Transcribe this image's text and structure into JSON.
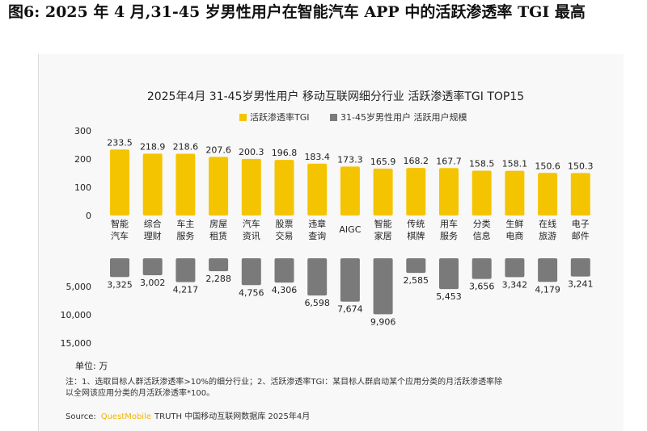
{
  "figure_title": "图6:  2025 年 4 月,31-45 岁男性用户在智能汽车 APP 中的活跃渗透率 TGI 最高",
  "colors": {
    "tgi_bar": "#f5c400",
    "scale_bar": "#7a7a7a",
    "source_brand": "#f5b400"
  },
  "chart_data": {
    "type": "bar",
    "title": "2025年4月 31-45岁男性用户 移动互联网细分行业 活跃渗透率TGI TOP15",
    "categories": [
      [
        "智能",
        "汽车"
      ],
      [
        "综合",
        "理财"
      ],
      [
        "车主",
        "服务"
      ],
      [
        "房屋",
        "租赁"
      ],
      [
        "汽车",
        "资讯"
      ],
      [
        "股票",
        "交易"
      ],
      [
        "违章",
        "查询"
      ],
      [
        "AIGC"
      ],
      [
        "智能",
        "家居"
      ],
      [
        "传统",
        "棋牌"
      ],
      [
        "用车",
        "服务"
      ],
      [
        "分类",
        "信息"
      ],
      [
        "生鲜",
        "电商"
      ],
      [
        "在线",
        "旅游"
      ],
      [
        "电子",
        "邮件"
      ]
    ],
    "series": [
      {
        "name": "活跃渗透率TGI",
        "values": [
          233.5,
          218.9,
          218.6,
          207.6,
          200.3,
          196.8,
          183.4,
          173.3,
          165.9,
          168.2,
          167.7,
          158.5,
          158.1,
          150.6,
          150.3
        ],
        "labels": [
          "233.5",
          "218.9",
          "218.6",
          "207.6",
          "200.3",
          "196.8",
          "183.4",
          "173.3",
          "165.9",
          "168.2",
          "167.7",
          "158.5",
          "158.1",
          "150.6",
          "150.3"
        ]
      },
      {
        "name": "31-45岁男性用户 活跃用户规模",
        "values": [
          3325,
          3002,
          4217,
          2288,
          4756,
          4306,
          6598,
          7674,
          9906,
          2585,
          5453,
          3656,
          3342,
          4179,
          3241
        ],
        "labels": [
          "3,325",
          "3,002",
          "4,217",
          "2,288",
          "4,756",
          "4,306",
          "6,598",
          "7,674",
          "9,906",
          "2,585",
          "5,453",
          "3,656",
          "3,342",
          "4,179",
          "3,241"
        ]
      }
    ],
    "top_axis": {
      "ticks": [
        "300",
        "200",
        "100",
        "0"
      ],
      "tick_values": [
        300,
        200,
        100,
        0
      ],
      "ylim": [
        0,
        300
      ]
    },
    "bottom_axis": {
      "ticks": [
        "5,000",
        "10,000",
        "15,000"
      ],
      "tick_values": [
        5000,
        10000,
        15000
      ],
      "ylim": [
        0,
        15000
      ]
    },
    "unit_label": "单位: 万",
    "legend_position": "top-center",
    "grid": false
  },
  "notes": {
    "line1": "注：1、选取目标人群活跃渗透率>10%的细分行业；2、活跃渗透率TGI：某目标人群启动某个应用分类的月活跃渗透率除",
    "line2": "以全网该应用分类的月活跃渗透率*100。",
    "source_label": "Source:",
    "source_brand": "QuestMobile",
    "source_rest": "TRUTH 中国移动互联网数据库 2025年4月"
  }
}
